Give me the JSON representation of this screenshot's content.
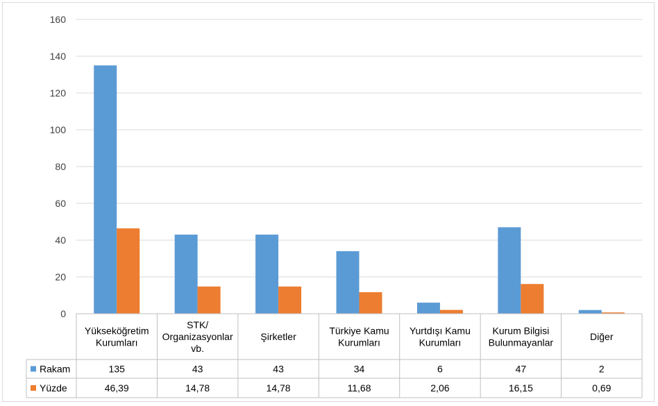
{
  "chart_data": {
    "type": "bar",
    "categories": [
      [
        "Yükseköğretim",
        "Kurumları"
      ],
      [
        "STK/",
        "Organizasyonlar",
        "vb."
      ],
      [
        "Şirketler"
      ],
      [
        "Türkiye Kamu",
        "Kurumları"
      ],
      [
        "Yurtdışı Kamu",
        "Kurumları"
      ],
      [
        "Kurum Bilgisi",
        "Bulunmayanlar"
      ],
      [
        "Diğer"
      ]
    ],
    "series": [
      {
        "name": "Rakam",
        "color": "#5b9bd5",
        "values": [
          135,
          43,
          43,
          34,
          6,
          47,
          2
        ],
        "labels": [
          "135",
          "43",
          "43",
          "34",
          "6",
          "47",
          "2"
        ]
      },
      {
        "name": "Yüzde",
        "color": "#ed7d31",
        "values": [
          46.39,
          14.78,
          14.78,
          11.68,
          2.06,
          16.15,
          0.69
        ],
        "labels": [
          "46,39",
          "14,78",
          "14,78",
          "11,68",
          "2,06",
          "16,15",
          "0,69"
        ]
      }
    ],
    "ylim": [
      0,
      160
    ],
    "yticks": [
      0,
      20,
      40,
      60,
      80,
      100,
      120,
      140,
      160
    ],
    "grid": true,
    "data_table": true
  }
}
